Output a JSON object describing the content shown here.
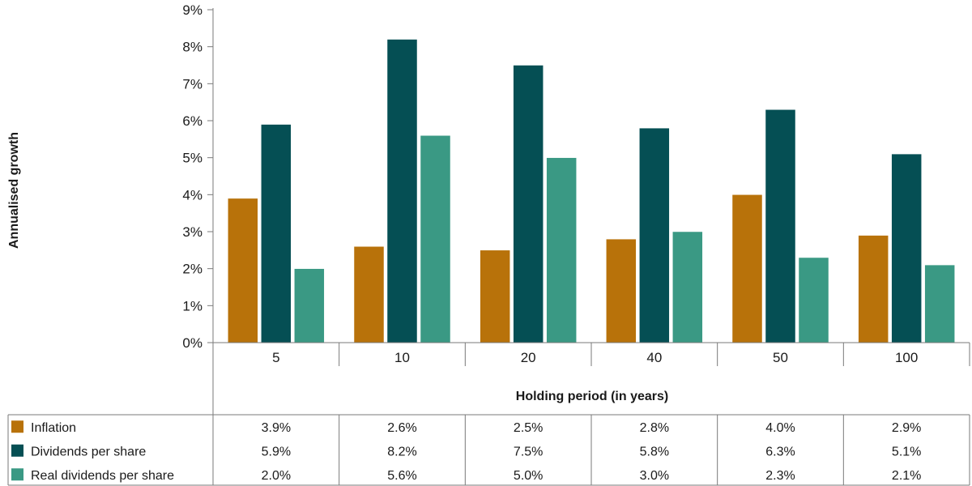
{
  "chart_data": {
    "type": "bar",
    "ylabel": "Annualised growth",
    "xlabel": "Holding period (in years)",
    "ylim": [
      0,
      9
    ],
    "yticks": [
      "0%",
      "1%",
      "2%",
      "3%",
      "4%",
      "5%",
      "6%",
      "7%",
      "8%",
      "9%"
    ],
    "categories": [
      "5",
      "10",
      "20",
      "40",
      "50",
      "100"
    ],
    "series": [
      {
        "name": "Inflation",
        "color": "#b8720a",
        "values": [
          3.9,
          2.6,
          2.5,
          2.8,
          4.0,
          2.9
        ],
        "labels": [
          "3.9%",
          "2.6%",
          "2.5%",
          "2.8%",
          "4.0%",
          "2.9%"
        ]
      },
      {
        "name": "Dividends per share",
        "color": "#054f54",
        "values": [
          5.9,
          8.2,
          7.5,
          5.8,
          6.3,
          5.1
        ],
        "labels": [
          "5.9%",
          "8.2%",
          "7.5%",
          "5.8%",
          "6.3%",
          "5.1%"
        ]
      },
      {
        "name": "Real dividends per share",
        "color": "#3a9984",
        "values": [
          2.0,
          5.6,
          5.0,
          3.0,
          2.3,
          2.1
        ],
        "labels": [
          "2.0%",
          "5.6%",
          "5.0%",
          "3.0%",
          "2.3%",
          "2.1%"
        ]
      }
    ],
    "legend_placement": "table-below"
  }
}
